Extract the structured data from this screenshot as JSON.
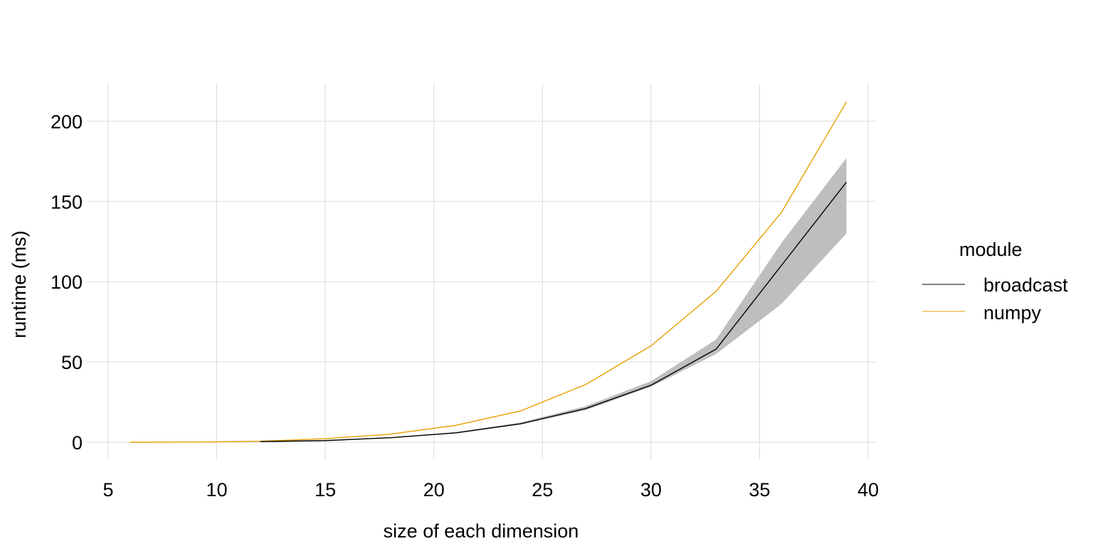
{
  "chart_data": {
    "type": "line",
    "title": "",
    "xlabel": "size of each dimension",
    "ylabel": "runtime (ms)",
    "xlim": [
      5,
      40
    ],
    "ylim": [
      -8,
      222
    ],
    "x_ticks": [
      5,
      10,
      15,
      20,
      25,
      30,
      35,
      40
    ],
    "y_ticks": [
      0,
      50,
      100,
      150,
      200
    ],
    "grid": true,
    "legend": {
      "title": "module",
      "placement": "right"
    },
    "colors": {
      "broadcast": "#000000",
      "numpy": "#E69F00",
      "ribbon": "#bebebe"
    },
    "series": [
      {
        "name": "broadcast",
        "x": [
          12,
          15,
          18,
          21,
          24,
          27,
          30,
          33,
          36,
          39
        ],
        "y": [
          0.4,
          1.0,
          2.8,
          5.8,
          11.5,
          21,
          35.5,
          58,
          110,
          162
        ],
        "lower": [
          0.3,
          0.8,
          2.5,
          5.5,
          11,
          20,
          34.5,
          55,
          86,
          130
        ],
        "upper": [
          0.5,
          1.2,
          3.1,
          6.3,
          12.3,
          22.5,
          38,
          64,
          124,
          177
        ]
      },
      {
        "name": "numpy",
        "x": [
          6,
          9,
          12,
          15,
          18,
          21,
          24,
          27,
          30,
          33,
          36,
          39
        ],
        "y": [
          0,
          0.1,
          0.6,
          2.2,
          5.0,
          10.5,
          19.5,
          36,
          60,
          94,
          143,
          212
        ]
      }
    ]
  }
}
